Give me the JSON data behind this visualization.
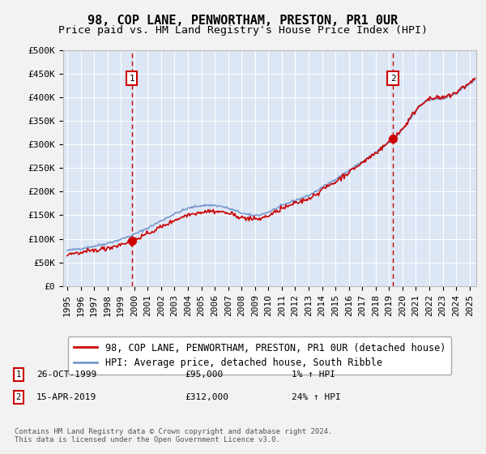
{
  "title": "98, COP LANE, PENWORTHAM, PRESTON, PR1 0UR",
  "subtitle": "Price paid vs. HM Land Registry's House Price Index (HPI)",
  "ylim": [
    0,
    500000
  ],
  "yticks": [
    0,
    50000,
    100000,
    150000,
    200000,
    250000,
    300000,
    350000,
    400000,
    450000,
    500000
  ],
  "ytick_labels": [
    "£0",
    "£50K",
    "£100K",
    "£150K",
    "£200K",
    "£250K",
    "£300K",
    "£350K",
    "£400K",
    "£450K",
    "£500K"
  ],
  "xlim_start": 1994.7,
  "xlim_end": 2025.5,
  "xticks": [
    1995,
    1996,
    1997,
    1998,
    1999,
    2000,
    2001,
    2002,
    2003,
    2004,
    2005,
    2006,
    2007,
    2008,
    2009,
    2010,
    2011,
    2012,
    2013,
    2014,
    2015,
    2016,
    2017,
    2018,
    2019,
    2020,
    2021,
    2022,
    2023,
    2024,
    2025
  ],
  "background_color": "#dce6f5",
  "fig_background": "#f2f2f2",
  "grid_color": "#ffffff",
  "sale1_x": 1999.82,
  "sale1_y": 95000,
  "sale1_label": "1",
  "sale1_date": "26-OCT-1999",
  "sale1_price": "£95,000",
  "sale1_hpi": "1% ↑ HPI",
  "sale2_x": 2019.29,
  "sale2_y": 312000,
  "sale2_label": "2",
  "sale2_date": "15-APR-2019",
  "sale2_price": "£312,000",
  "sale2_hpi": "24% ↑ HPI",
  "line1_color": "#cc0000",
  "line2_color": "#7799cc",
  "marker_color": "#cc0000",
  "vline_color": "#cc0000",
  "legend_line1": "98, COP LANE, PENWORTHAM, PRESTON, PR1 0UR (detached house)",
  "legend_line2": "HPI: Average price, detached house, South Ribble",
  "footer": "Contains HM Land Registry data © Crown copyright and database right 2024.\nThis data is licensed under the Open Government Licence v3.0.",
  "title_fontsize": 11,
  "subtitle_fontsize": 9.5,
  "tick_fontsize": 8,
  "legend_fontsize": 8.5
}
